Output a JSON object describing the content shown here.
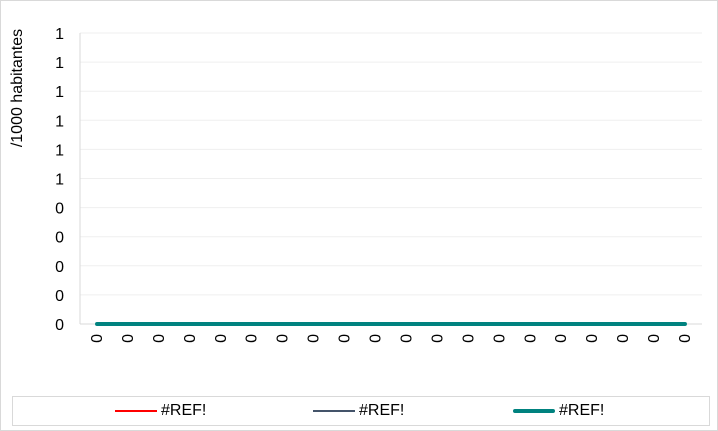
{
  "chart_data": {
    "type": "line",
    "title": "",
    "xlabel": "",
    "ylabel": "/1000 habitantes",
    "y_tick_labels": [
      "1",
      "1",
      "1",
      "1",
      "1",
      "1",
      "0",
      "0",
      "0",
      "0",
      "0"
    ],
    "categories": [
      "0",
      "0",
      "0",
      "0",
      "0",
      "0",
      "0",
      "0",
      "0",
      "0",
      "0",
      "0",
      "0",
      "0",
      "0",
      "0",
      "0",
      "0",
      "0",
      "0"
    ],
    "ylim": [
      0,
      1
    ],
    "grid": true,
    "legend_position": "bottom",
    "series": [
      {
        "name": "#REF!",
        "color": "#ff0000",
        "values": [
          0,
          0,
          0,
          0,
          0,
          0,
          0,
          0,
          0,
          0,
          0,
          0,
          0,
          0,
          0,
          0,
          0,
          0,
          0,
          0
        ]
      },
      {
        "name": "#REF!",
        "color": "#44546a",
        "values": [
          0,
          0,
          0,
          0,
          0,
          0,
          0,
          0,
          0,
          0,
          0,
          0,
          0,
          0,
          0,
          0,
          0,
          0,
          0,
          0
        ]
      },
      {
        "name": "#REF!",
        "color": "#00827f",
        "values": [
          0,
          0,
          0,
          0,
          0,
          0,
          0,
          0,
          0,
          0,
          0,
          0,
          0,
          0,
          0,
          0,
          0,
          0,
          0,
          0
        ]
      }
    ]
  }
}
